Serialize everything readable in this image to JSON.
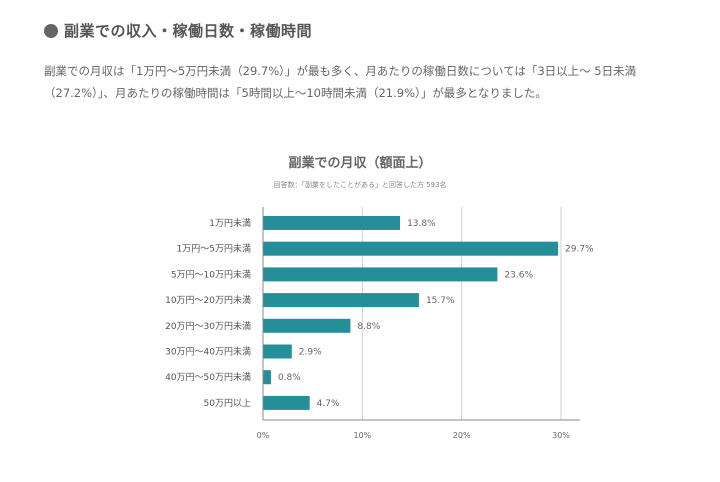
{
  "section": {
    "title": "副業での収入・稼働日数・稼働時間"
  },
  "summary": "副業での月収は「1万円〜5万円未満（29.7%）」が最も多く、月あたりの稼働日数については「3日以上〜 5日未満（27.2%）」、月あたりの稼働時間は「5時間以上〜10時間未満（21.9%）」が最多となりました。",
  "colors": {
    "bar": "#248f99",
    "grid": "#d0d0d0",
    "axis": "#888888"
  },
  "chart_data": {
    "type": "bar",
    "orientation": "horizontal",
    "title": "副業での月収（額面上）",
    "subtitle": "回答数：「副業をしたことがある」と回答した方 593名",
    "categories": [
      "1万円未満",
      "1万円〜5万円未満",
      "5万円〜10万円未満",
      "10万円〜20万円未満",
      "20万円〜30万円未満",
      "30万円〜40万円未満",
      "40万円〜50万円未満",
      "50万円以上"
    ],
    "values": [
      13.8,
      29.7,
      23.6,
      15.7,
      8.8,
      2.9,
      0.8,
      4.7
    ],
    "value_labels": [
      "13.8%",
      "29.7%",
      "23.6%",
      "15.7%",
      "8.8%",
      "2.9%",
      "0.8%",
      "4.7%"
    ],
    "xlim": [
      0,
      30
    ],
    "xticks": [
      0,
      10,
      20,
      30
    ],
    "xtick_labels": [
      "0%",
      "10%",
      "20%",
      "30%"
    ],
    "grid": true,
    "legend": "none"
  }
}
